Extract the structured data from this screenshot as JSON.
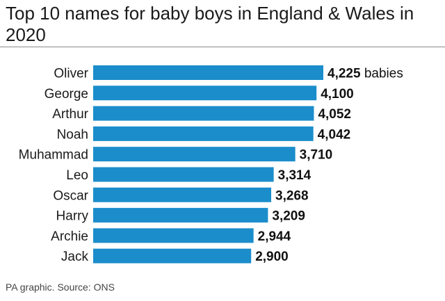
{
  "chart_data": {
    "type": "bar",
    "orientation": "horizontal",
    "title": "Top 10 names for baby boys in England & Wales in 2020",
    "categories": [
      "Oliver",
      "George",
      "Arthur",
      "Noah",
      "Muhammad",
      "Leo",
      "Oscar",
      "Harry",
      "Archie",
      "Jack"
    ],
    "values": [
      4225,
      4100,
      4052,
      4042,
      3710,
      3314,
      3268,
      3209,
      2944,
      2900
    ],
    "value_labels": [
      "4,225",
      "4,100",
      "4,052",
      "4,042",
      "3,710",
      "3,314",
      "3,268",
      "3,209",
      "2,944",
      "2,900"
    ],
    "first_value_unit": "babies",
    "xlim": [
      0,
      4225
    ],
    "grid": false,
    "bar_color": "#1b8dcb"
  },
  "source": "PA graphic. Source: ONS"
}
